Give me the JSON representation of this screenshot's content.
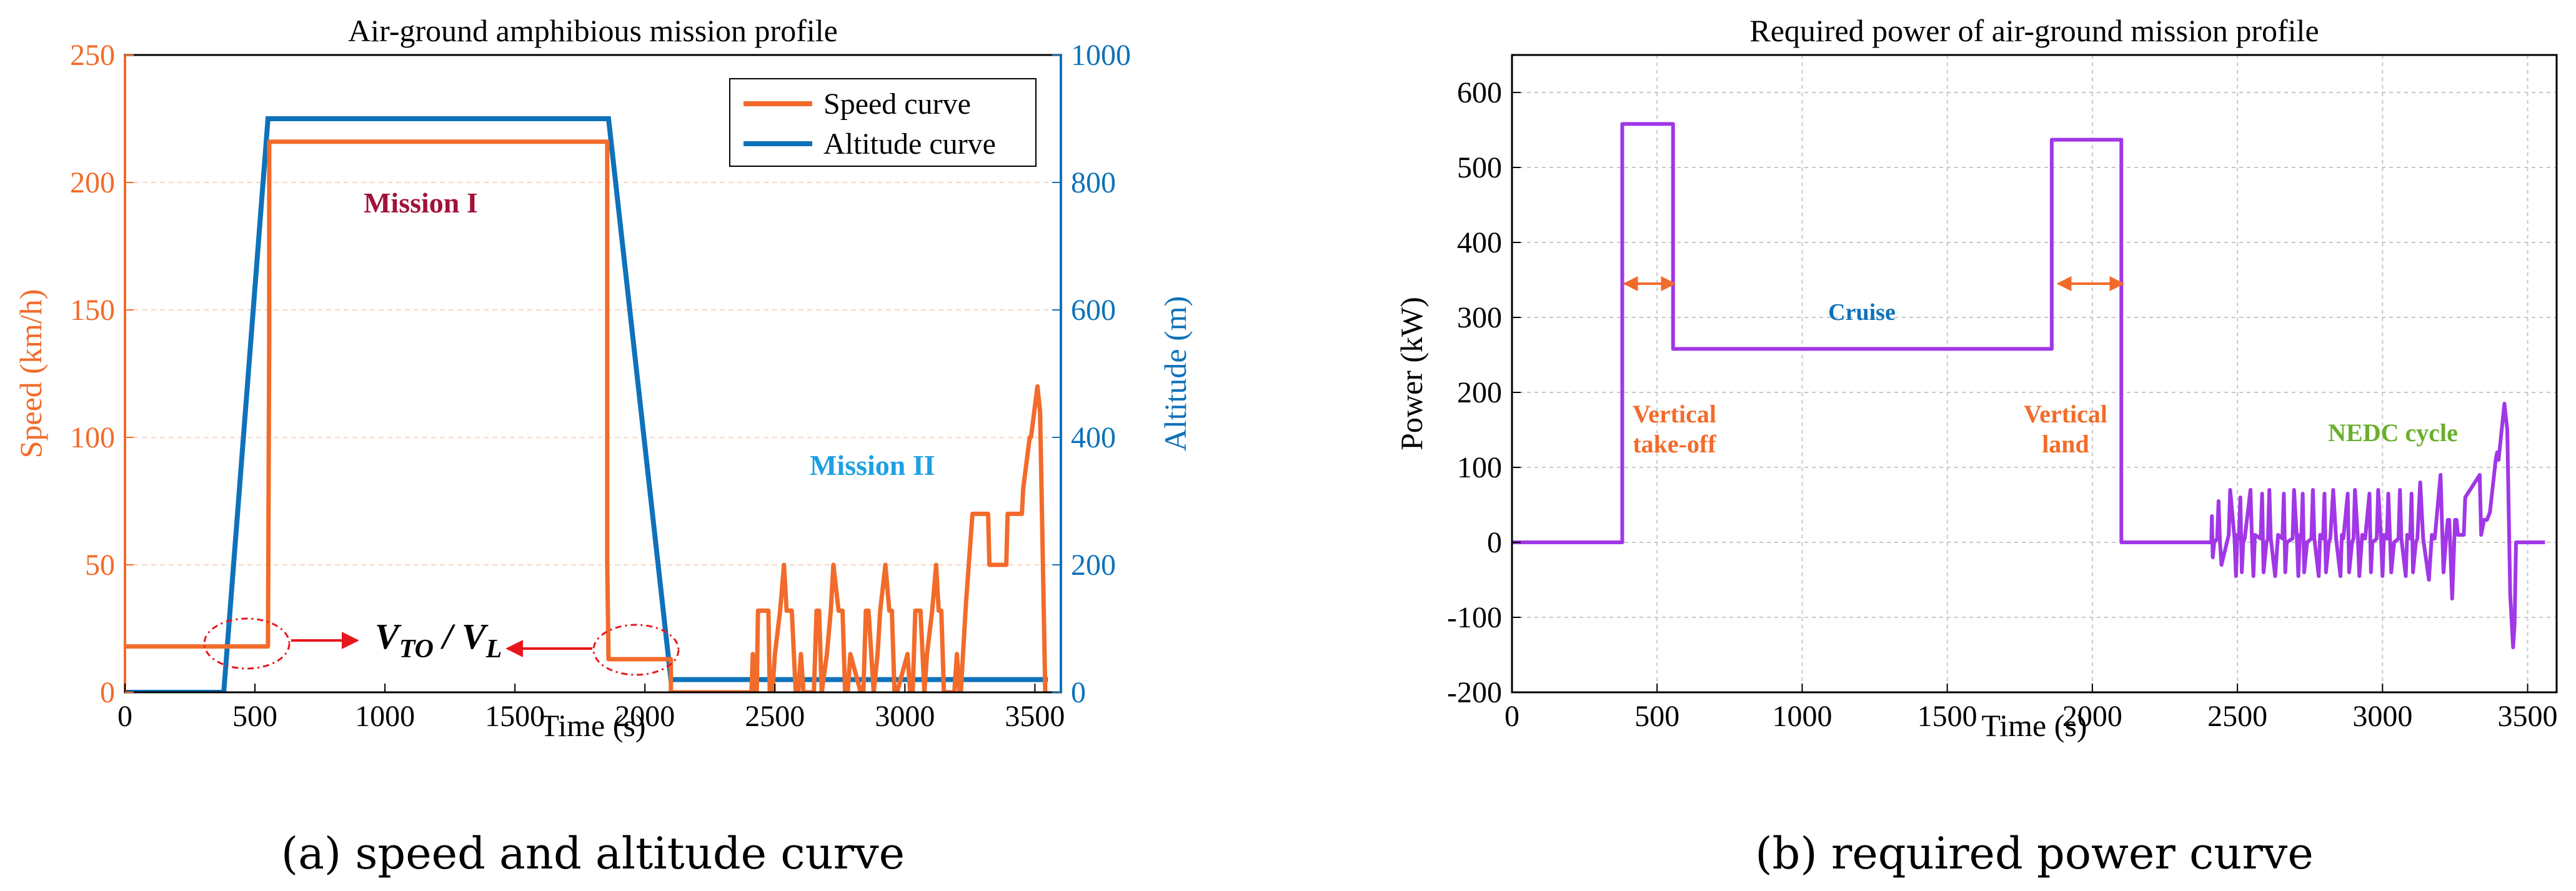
{
  "chart_data": [
    {
      "id": "a",
      "type": "line",
      "title": "Air-ground amphibious mission profile",
      "xlabel": "Time (s)",
      "ylabel_left": "Speed (km/h)",
      "ylabel_right": "Altitude (m)",
      "xlim": [
        0,
        3600
      ],
      "ylim_left": [
        0,
        250
      ],
      "ylim_right": [
        0,
        1000
      ],
      "xticks": [
        0,
        500,
        1000,
        1500,
        2000,
        2500,
        3000,
        3500
      ],
      "yticks_left": [
        0,
        50,
        100,
        150,
        200,
        250
      ],
      "yticks_right": [
        0,
        200,
        400,
        600,
        800,
        1000
      ],
      "grid": true,
      "legend_position": "top-right",
      "colors": {
        "speed": "#F26B2A",
        "altitude": "#0E72BA",
        "arrow": "#E8161D",
        "mission1": "#A1123A",
        "mission2": "#1DA1E2"
      },
      "series": [
        {
          "name": "Speed curve",
          "axis": "left",
          "x": [
            0,
            380,
            380,
            550,
            550,
            555,
            555,
            1855,
            1855,
            1860,
            1860,
            2100,
            2100,
            2410,
            2415,
            2420,
            2430,
            2435,
            2475,
            2480,
            2490,
            2500,
            2520,
            2535,
            2545,
            2565,
            2580,
            2590,
            2600,
            2610,
            2650,
            2660,
            2670,
            2680,
            2700,
            2715,
            2725,
            2745,
            2760,
            2770,
            2780,
            2790,
            2830,
            2840,
            2850,
            2860,
            2880,
            2895,
            2905,
            2925,
            2940,
            2950,
            2960,
            2970,
            3010,
            3020,
            3030,
            3040,
            3060,
            3075,
            3085,
            3105,
            3120,
            3130,
            3140,
            3150,
            3190,
            3200,
            3210,
            3215,
            3235,
            3260,
            3320,
            3325,
            3390,
            3395,
            3450,
            3455,
            3480,
            3485,
            3510,
            3520,
            3540,
            3545
          ],
          "values": [
            18,
            18,
            18,
            18,
            18,
            140,
            216,
            216,
            50,
            13,
            13,
            13,
            0,
            0,
            15,
            0,
            0,
            32,
            32,
            0,
            0,
            15,
            32,
            50,
            32,
            32,
            0,
            0,
            15,
            0,
            0,
            32,
            32,
            0,
            15,
            32,
            50,
            32,
            32,
            0,
            0,
            15,
            0,
            0,
            32,
            32,
            0,
            15,
            32,
            50,
            32,
            32,
            0,
            0,
            15,
            0,
            0,
            32,
            32,
            0,
            15,
            32,
            50,
            32,
            32,
            0,
            0,
            15,
            0,
            0,
            35,
            70,
            70,
            50,
            50,
            70,
            70,
            80,
            100,
            100,
            120,
            110,
            0,
            0
          ]
        },
        {
          "name": "Altitude curve",
          "axis": "right",
          "x": [
            0,
            380,
            550,
            1860,
            2100,
            3550
          ],
          "values": [
            0,
            0,
            900,
            900,
            20,
            20
          ]
        }
      ],
      "annotations": {
        "mission1": "Mission I",
        "mission2": "Mission II",
        "vto_main": "V",
        "vto_sub": "TO",
        "vl_main": "V",
        "vl_sub": "L",
        "slash": " / "
      },
      "caption_letter": "(a)",
      "caption_text": " speed and altitude curve"
    },
    {
      "id": "b",
      "type": "line",
      "title": "Required power of air-ground mission profile",
      "xlabel": "Time (s)",
      "ylabel": "Power (kW)",
      "xlim": [
        0,
        3600
      ],
      "ylim": [
        -200,
        650
      ],
      "xticks": [
        0,
        500,
        1000,
        1500,
        2000,
        2500,
        3000,
        3500
      ],
      "yticks": [
        -200,
        -100,
        0,
        100,
        200,
        300,
        400,
        500,
        600
      ],
      "grid": true,
      "colors": {
        "power": "#A137E6",
        "arrow": "#F26B2A",
        "cruise": "#0E72BA",
        "vertical": "#F26B2A",
        "nedc": "#6BAF2E"
      },
      "series": [
        {
          "name": "Power",
          "x": [
            0,
            380,
            380,
            555,
            555,
            1860,
            1860,
            2100,
            2100,
            2410,
            2412,
            2415,
            2420,
            2430,
            2435,
            2440,
            2445,
            2470,
            2475,
            2490,
            2495,
            2500,
            2505,
            2510,
            2515,
            2520,
            2525,
            2545,
            2550,
            2555,
            2560,
            2580,
            2585,
            2590,
            2600,
            2605,
            2610,
            2615,
            2630,
            2640,
            2655,
            2660,
            2665,
            2670,
            2690,
            2695,
            2705,
            2710,
            2715,
            2720,
            2725,
            2730,
            2740,
            2755,
            2760,
            2765,
            2780,
            2785,
            2795,
            2800,
            2805,
            2815,
            2820,
            2830,
            2840,
            2855,
            2860,
            2865,
            2880,
            2885,
            2895,
            2900,
            2905,
            2915,
            2920,
            2930,
            2940,
            2955,
            2960,
            2965,
            2980,
            2985,
            2995,
            3000,
            3005,
            3015,
            3020,
            3030,
            3040,
            3055,
            3060,
            3065,
            3080,
            3085,
            3095,
            3100,
            3105,
            3115,
            3120,
            3130,
            3140,
            3160,
            3170,
            3180,
            3200,
            3210,
            3220,
            3225,
            3230,
            3240,
            3250,
            3255,
            3260,
            3275,
            3280,
            3285,
            3335,
            3340,
            3350,
            3360,
            3370,
            3390,
            3395,
            3400,
            3420,
            3430,
            3440,
            3450,
            3455,
            3460,
            3480,
            3490,
            3500,
            3505,
            3510,
            3520,
            3530,
            3535,
            3540,
            3545,
            3550,
            3555,
            3560
          ],
          "values": [
            0,
            0,
            558,
            558,
            258,
            258,
            537,
            537,
            0,
            0,
            35,
            -20,
            0,
            5,
            55,
            0,
            -30,
            10,
            70,
            5,
            -45,
            10,
            5,
            60,
            -40,
            0,
            5,
            70,
            5,
            -45,
            10,
            5,
            65,
            -40,
            0,
            5,
            70,
            5,
            -45,
            10,
            5,
            65,
            -40,
            0,
            5,
            70,
            5,
            -45,
            10,
            5,
            65,
            -40,
            0,
            5,
            70,
            5,
            -45,
            10,
            5,
            65,
            -40,
            0,
            5,
            70,
            5,
            -45,
            10,
            5,
            65,
            -40,
            0,
            5,
            70,
            5,
            -45,
            10,
            5,
            65,
            -40,
            0,
            5,
            70,
            5,
            -45,
            10,
            5,
            65,
            -40,
            0,
            5,
            70,
            5,
            -45,
            10,
            5,
            65,
            -40,
            0,
            5,
            80,
            5,
            -50,
            10,
            5,
            90,
            -40,
            10,
            30,
            30,
            -75,
            30,
            30,
            10,
            10,
            10,
            60,
            90,
            10,
            30,
            30,
            40,
            110,
            120,
            110,
            185,
            150,
            -70,
            -140,
            -110,
            0,
            0,
            0,
            0,
            0,
            0,
            0,
            0,
            0,
            0,
            0,
            0,
            0,
            0
          ]
        }
      ],
      "annotations": {
        "cruise": "Cruise",
        "vertical_takeoff_1": "Vertical",
        "vertical_takeoff_2": "take-off",
        "vertical_land_1": "Vertical",
        "vertical_land_2": "land",
        "nedc": "NEDC cycle"
      },
      "caption_letter": "(b)",
      "caption_text": " required power curve"
    }
  ]
}
